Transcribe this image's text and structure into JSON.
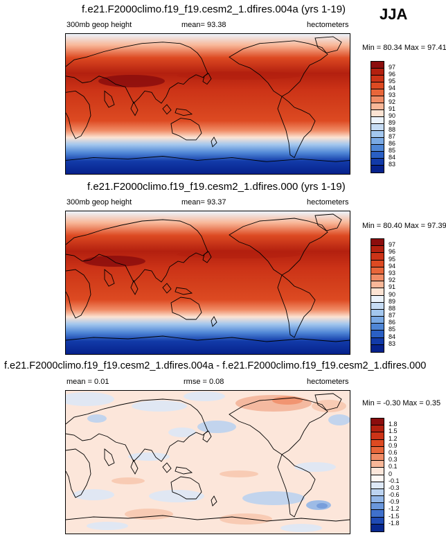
{
  "season": "JJA",
  "panels": [
    {
      "title": "f.e21.F2000climo.f19_f19.cesm2_1.dfires.004a (yrs 1-19)",
      "left_label": "300mb geop height",
      "center_label": "mean=  93.38",
      "right_label": "hectometers",
      "minmax": "Min = 80.34 Max = 97.41",
      "colorbar": {
        "labels": [
          "97",
          "96",
          "95",
          "94",
          "93",
          "92",
          "91",
          "90",
          "89",
          "88",
          "87",
          "86",
          "85",
          "84",
          "83"
        ],
        "colors": [
          "#8b0d0d",
          "#b3200f",
          "#cc3317",
          "#dd4a22",
          "#e8663a",
          "#f08c66",
          "#f8b798",
          "#fce3d3",
          "#ecf3fb",
          "#c6dcf4",
          "#a3c7ee",
          "#7aa9e4",
          "#4f86d6",
          "#2a5fc4",
          "#123aa8",
          "#06228c"
        ]
      }
    },
    {
      "title": "f.e21.F2000climo.f19_f19.cesm2_1.dfires.000 (yrs 1-19)",
      "left_label": "300mb geop height",
      "center_label": "mean=  93.37",
      "right_label": "hectometers",
      "minmax": "Min = 80.40 Max = 97.39",
      "colorbar": {
        "labels": [
          "97",
          "96",
          "95",
          "94",
          "93",
          "92",
          "91",
          "90",
          "89",
          "88",
          "87",
          "86",
          "85",
          "84",
          "83"
        ],
        "colors": [
          "#8b0d0d",
          "#b3200f",
          "#cc3317",
          "#dd4a22",
          "#e8663a",
          "#f08c66",
          "#f8b798",
          "#fce3d3",
          "#ecf3fb",
          "#c6dcf4",
          "#a3c7ee",
          "#7aa9e4",
          "#4f86d6",
          "#2a5fc4",
          "#123aa8",
          "#06228c"
        ]
      }
    },
    {
      "title": "f.e21.F2000climo.f19_f19.cesm2_1.dfires.004a - f.e21.F2000climo.f19_f19.cesm2_1.dfires.000",
      "left_label": "mean =   0.01",
      "center_label": "rmse =   0.08",
      "right_label": "hectometers",
      "minmax": "Min = -0.30 Max =   0.35",
      "colorbar": {
        "labels": [
          "1.8",
          "1.5",
          "1.2",
          "0.9",
          "0.6",
          "0.3",
          "0.1",
          "0",
          "-0.1",
          "-0.3",
          "-0.6",
          "-0.9",
          "-1.2",
          "-1.5",
          "-1.8"
        ],
        "colors": [
          "#8b0d0d",
          "#b3200f",
          "#cc3317",
          "#dd4a22",
          "#e8663a",
          "#f08c66",
          "#f8b798",
          "#fce6da",
          "#fff8f4",
          "#dde8f6",
          "#bcd3f0",
          "#93b7e8",
          "#6a97dc",
          "#3f70cc",
          "#1f4ab4",
          "#08288f"
        ]
      }
    }
  ]
}
